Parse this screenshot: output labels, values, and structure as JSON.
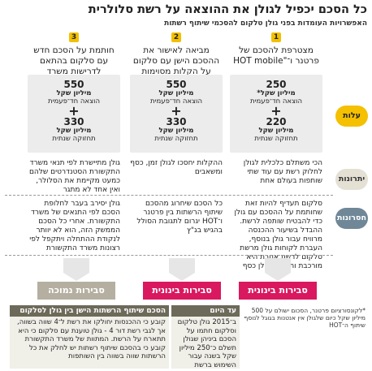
{
  "header": {
    "title": "כל הסכם יכפיל לגולן את ההוצאה על רשת סלולרית",
    "subtitle": "האפשרויות העומדות בפני גולן טלקום להסכמי שיתוף רשתות"
  },
  "columns": [
    {
      "number": "1",
      "heading": "מצטרפת להסכם של פרטנר ו־\"HOT mobile",
      "amount1": "250",
      "amount1_unit": "מיליון שקל*",
      "amount1_desc": "הוצאה חד־פעמית",
      "amount2": "220",
      "amount2_unit": "מיליון שקל",
      "amount2_desc": "תחזוקה שנתית",
      "benefit": "הכי משתלם כלכלית לגולן לחלוק רשת עם עוד שתי שותפות בעולם אחת",
      "risk": "סלקום תעדיף להיות זאת שחותמת על ההסכם עם גולן כדי להבטיח שותפה לרשת. ההבדל בשיעור ההכנסה מרוויח עבור גולן בנוסף, העברת לקוחות גולן מרשת סלקום לרשת אחרת היא מורכבת ותעלה לגולן כסף",
      "rating": "סבירות בינונית"
    },
    {
      "number": "2",
      "heading": "מביאה לאישור את ההסכם הישן עם סלקום על הקלות מסוימות",
      "amount1": "550",
      "amount1_unit": "מיליון שקל",
      "amount1_desc": "הוצאה חד־פעמית",
      "amount2": "330",
      "amount2_unit": "מיליון שקל",
      "amount2_desc": "תחזוקה שנתית",
      "benefit": "ההקלות יחסכו לגולן זמן, כסף ומשאבים",
      "risk": "כל הסכם שיחרוג מהסכם שיתוף הרשתות בין פרטנר ו־HOT יגרום לתגובת הסולל בהגיש בג\"ץ",
      "rating": "סבירות בינונית"
    },
    {
      "number": "3",
      "heading": "חותמת על הסכם חדש עם סלקום בהתאם לדרישות משרד התקשורת",
      "amount1": "550",
      "amount1_unit": "מיליון שקל",
      "amount1_desc": "הוצאה חד־פעמית",
      "amount2": "330",
      "amount2_unit": "מיליון שקל",
      "amount2_desc": "תחזוקה שנתית",
      "benefit": "גולן מתיישרת לפי תנאי משרד התקשורת הסטנדרטים שלהם כמעט מקיימת את הסלולר, ואין אחד לא מתגר",
      "risk": "גולן יסירב בעבר לחלופת הסכם לפי התנאים של משרד התקשורת. אחרי כל הסכם הממשק הזה, הוא לא יוותר לנקודת ההתחלה ויתקפל לפי רצונות משרד התקשורת",
      "rating": "סבירות נמוכה"
    }
  ],
  "side_labels": {
    "cost": "עלות",
    "advantages": "יתרונות",
    "disadvantages": "חסרונות"
  },
  "plus_sign": "+",
  "footnote": "*לקונסורציום פרטנר, הסכום ישולם על 500 מיליון שקל כיום שלגולן אין אנטנות בגוגל לנוסף שיתוף ה־HOT",
  "box_today": {
    "title": "עד היום",
    "body": "ב־2015 גולן טלקום וסלקום חתמו על הסכם ביניהן שגולן תשלם כ־250 מיליון שקל בשנה עבור השימוש ברשת"
  },
  "box_old_agreement": {
    "title": "הסכם שיתוף הרשתות הישן בין גולן לסלקום",
    "body": "קובע כי ההכנסות יחולקו את רשת ל־4 שווה בשווה, אך לגבי רשת דור 4 - גולן טוענת עם סלקום כי היא תתארח על הרשת. המתוות של משרד התקשורת קובע כי בהסכם שיתוף רשתות יש לחלק את כל הרשתות שווה בשווה בין השותפות"
  },
  "colors": {
    "accent": "#f4c000",
    "rating_mid": "#d9185f",
    "rating_low": "#b4afa0",
    "box_header": "#6d6a5a"
  }
}
